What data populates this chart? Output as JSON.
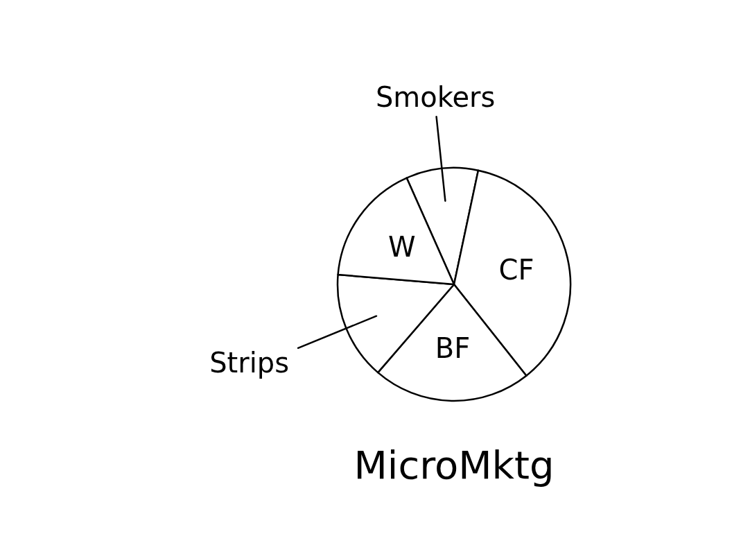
{
  "chart_data": {
    "type": "pie",
    "title": "MicroMktg",
    "categories": [
      "Smokers",
      "CF",
      "BF",
      "Strips",
      "W"
    ],
    "values": [
      10,
      36,
      22,
      15,
      17
    ],
    "colors": [
      "#ffffff",
      "#ffffff",
      "#ffffff",
      "#ffffff",
      "#ffffff"
    ]
  }
}
